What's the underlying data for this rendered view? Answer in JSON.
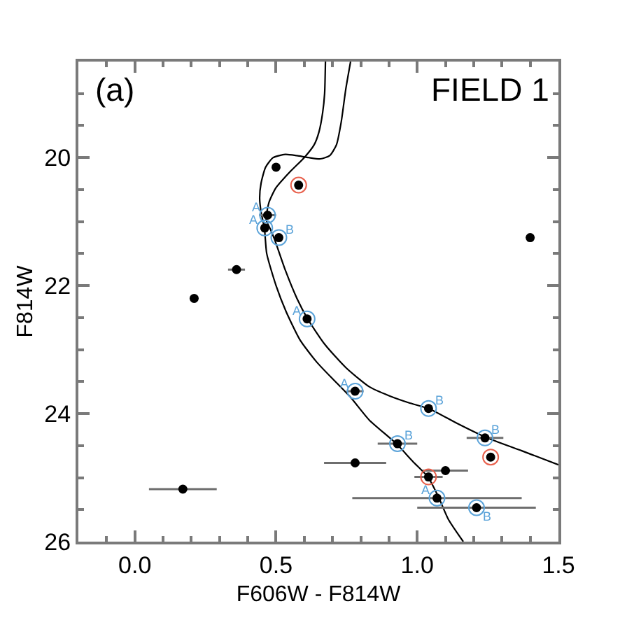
{
  "chart_data": {
    "type": "scatter",
    "xlabel": "F606W - F814W",
    "ylabel": "F814W",
    "annotations": [
      "(a)",
      "FIELD 1"
    ],
    "xlim": [
      -0.2,
      1.5
    ],
    "ylim": [
      26,
      18.5
    ],
    "xticks": [
      {
        "value": -0.1,
        "label": null
      },
      {
        "value": 0,
        "label": "0.0"
      },
      {
        "value": 0.1,
        "label": null
      },
      {
        "value": 0.2,
        "label": null
      },
      {
        "value": 0.3,
        "label": null
      },
      {
        "value": 0.4,
        "label": null
      },
      {
        "value": 0.5,
        "label": "0.5"
      },
      {
        "value": 0.6,
        "label": null
      },
      {
        "value": 0.7,
        "label": null
      },
      {
        "value": 0.8,
        "label": null
      },
      {
        "value": 0.9,
        "label": null
      },
      {
        "value": 1,
        "label": "1.0"
      },
      {
        "value": 1.1,
        "label": null
      },
      {
        "value": 1.2,
        "label": null
      },
      {
        "value": 1.3,
        "label": null
      },
      {
        "value": 1.4,
        "label": null
      },
      {
        "value": 1.5,
        "label": "1.5"
      }
    ],
    "yticks": [
      {
        "value": 19,
        "label": null
      },
      {
        "value": 19.5,
        "label": null
      },
      20,
      {
        "value": 20.5,
        "label": null
      },
      {
        "value": 21,
        "label": null
      },
      {
        "value": 21.5,
        "label": null
      },
      22,
      {
        "value": 22.5,
        "label": null
      },
      {
        "value": 23,
        "label": null
      },
      {
        "value": 23.5,
        "label": null
      },
      24,
      {
        "value": 24.5,
        "label": null
      },
      {
        "value": 25,
        "label": null
      },
      {
        "value": 25.5,
        "label": null
      },
      26
    ],
    "marker": "circle",
    "series": [
      {
        "color": "#000000",
        "x": [
          0.5,
          0.58,
          0.47,
          0.46,
          0.51,
          0.36,
          0.21,
          0.61,
          1.4,
          0.17,
          0.78,
          1.04,
          1.24,
          1.26,
          0.93,
          0.78,
          1.1,
          1.04,
          1.07,
          1.21
        ],
        "values": [
          20.15,
          20.43,
          20.9,
          21.1,
          21.25,
          21.75,
          22.2,
          22.52,
          21.25,
          25.18,
          23.65,
          23.92,
          24.38,
          24.68,
          24.47,
          24.77,
          24.89,
          24.99,
          25.32,
          25.47
        ],
        "xerrors": [
          null,
          null,
          0.03,
          null,
          null,
          0.03,
          null,
          null,
          null,
          0.12,
          0.03,
          null,
          0.065,
          null,
          0.07,
          0.11,
          0.08,
          0.05,
          0.3,
          0.21
        ]
      },
      {
        "color": "#5ba3d9",
        "x": [
          0.47,
          0.46,
          0.61,
          0.78,
          1.07
        ],
        "values": [
          20.9,
          21.1,
          22.52,
          23.65,
          25.32
        ],
        "value_labels": [
          "A",
          "A",
          "A",
          "A",
          "A"
        ]
      },
      {
        "color": "#5ba3d9",
        "x": [
          0.51,
          1.04,
          1.24,
          0.93,
          1.21
        ],
        "values": [
          21.25,
          23.92,
          24.38,
          24.47,
          25.47
        ],
        "value_labels": [
          "B",
          "B",
          "B",
          "B",
          "B"
        ]
      },
      {
        "color": "#e8604c",
        "x": [
          0.58,
          1.26,
          1.04
        ],
        "values": [
          20.43,
          24.68,
          24.99
        ]
      },
      {
        "type": "line",
        "color": "#000000",
        "line_style": "solid",
        "marker": "none",
        "x": [
          0.764,
          0.747,
          0.731,
          0.714,
          0.69,
          0.657,
          0.616,
          0.574,
          0.533,
          0.49,
          0.463,
          0.447,
          0.442,
          0.447,
          0.459,
          0.467,
          0.5,
          0.535,
          0.585,
          0.645,
          0.71,
          0.765,
          0.83,
          0.926,
          0.985,
          1.038,
          1.075,
          1.11,
          1.163
        ],
        "values": [
          18.5,
          18.93,
          19.44,
          19.8,
          19.97,
          20.02,
          20.0,
          19.97,
          19.95,
          20.0,
          20.15,
          20.4,
          20.63,
          20.85,
          21.11,
          21.5,
          22.0,
          22.4,
          22.85,
          23.2,
          23.5,
          23.75,
          24.1,
          24.47,
          24.75,
          24.99,
          25.3,
          25.65,
          26.0
        ]
      },
      {
        "type": "line",
        "color": "#000000",
        "line_style": "solid",
        "marker": "none",
        "x": [
          0.675,
          0.672,
          0.665,
          0.652,
          0.635,
          0.6,
          0.55,
          0.5,
          0.475,
          0.465,
          0.48,
          0.495,
          0.533,
          0.574,
          0.612,
          0.673,
          0.747,
          0.83,
          0.9,
          0.97,
          1.045,
          1.14,
          1.243,
          1.37,
          1.5
        ],
        "values": [
          18.5,
          19.0,
          19.3,
          19.6,
          19.8,
          20.0,
          20.22,
          20.47,
          20.7,
          20.97,
          21.12,
          21.28,
          21.76,
          22.2,
          22.52,
          22.92,
          23.28,
          23.58,
          23.72,
          23.83,
          23.93,
          24.15,
          24.37,
          24.58,
          24.8
        ]
      }
    ]
  }
}
